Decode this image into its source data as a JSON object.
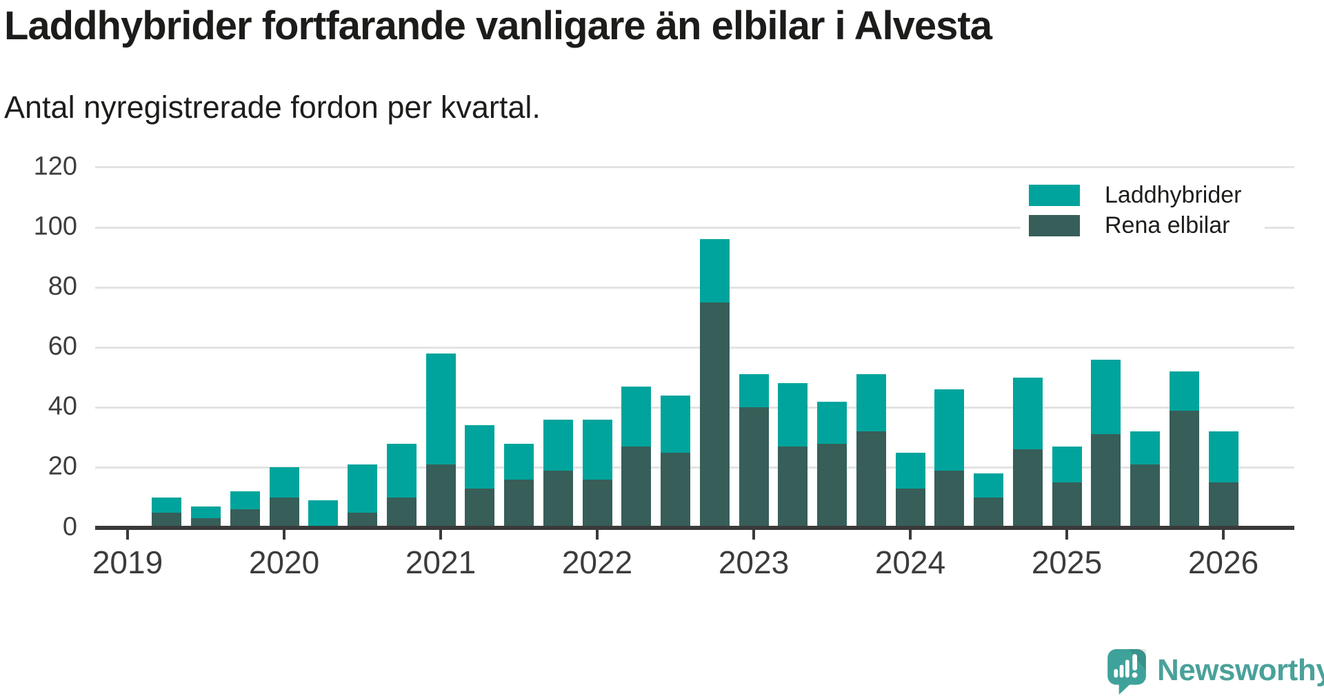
{
  "header": {
    "title": "Laddhybrider fortfarande vanligare än elbilar i Alvesta",
    "subtitle": "Antal nyregistrerade fordon per kvartal."
  },
  "colors": {
    "laddhybrider": "#00a49c",
    "rena_elbilar": "#375e59",
    "axis": "#3a3a3a",
    "gridline": "#e3e3e3",
    "text_dark": "#1d1d1b",
    "brand_teal": "#4aa19a"
  },
  "legend": [
    {
      "label": "Laddhybrider",
      "color": "#00a49c"
    },
    {
      "label": "Rena elbilar",
      "color": "#375e59"
    }
  ],
  "chart_data": {
    "type": "bar",
    "stacked": true,
    "title": "Laddhybrider fortfarande vanligare än elbilar i Alvesta",
    "subtitle": "Antal nyregistrerade fordon per kvartal.",
    "xlabel": "",
    "ylabel": "",
    "ylim": [
      0,
      120
    ],
    "yticks": [
      0,
      20,
      40,
      60,
      80,
      100,
      120
    ],
    "grid": "horizontal",
    "legend_position": "top-right",
    "categories": [
      "2019 Q2",
      "2019 Q3",
      "2019 Q4",
      "2020 Q1",
      "2020 Q2",
      "2020 Q3",
      "2020 Q4",
      "2021 Q1",
      "2021 Q2",
      "2021 Q3",
      "2021 Q4",
      "2022 Q1",
      "2022 Q2",
      "2022 Q3",
      "2022 Q4",
      "2023 Q1",
      "2023 Q2",
      "2023 Q3",
      "2023 Q4",
      "2024 Q1",
      "2024 Q2",
      "2024 Q3",
      "2024 Q4",
      "2025 Q1",
      "2025 Q2",
      "2025 Q3",
      "2025 Q4",
      "2026 Q1"
    ],
    "series": [
      {
        "name": "Rena elbilar",
        "color": "#375e59",
        "values": [
          5,
          3,
          6,
          10,
          0,
          5,
          10,
          21,
          13,
          16,
          19,
          16,
          27,
          25,
          75,
          40,
          27,
          28,
          32,
          13,
          19,
          10,
          26,
          15,
          31,
          21,
          39,
          15
        ]
      },
      {
        "name": "Laddhybrider",
        "color": "#00a49c",
        "values": [
          5,
          4,
          6,
          10,
          9,
          16,
          18,
          37,
          21,
          12,
          17,
          20,
          20,
          19,
          21,
          11,
          21,
          14,
          19,
          12,
          27,
          8,
          24,
          12,
          25,
          11,
          13,
          17
        ]
      }
    ],
    "year_ticks": [
      "2019",
      "2020",
      "2021",
      "2022",
      "2023",
      "2024",
      "2025",
      "2026"
    ]
  },
  "branding": {
    "wordmark": "Newsworthy",
    "logo_icon": "speech-bubble-bar-chart-exclamation"
  }
}
